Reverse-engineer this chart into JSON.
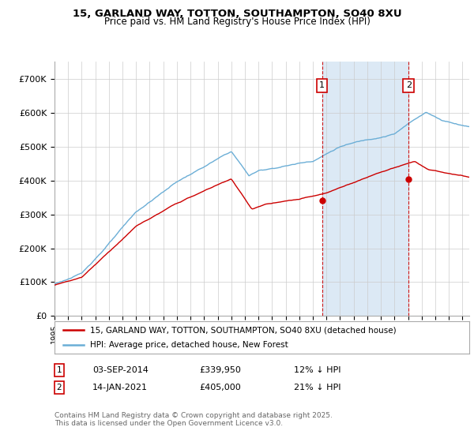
{
  "title1": "15, GARLAND WAY, TOTTON, SOUTHAMPTON, SO40 8XU",
  "title2": "Price paid vs. HM Land Registry's House Price Index (HPI)",
  "ylim": [
    0,
    750000
  ],
  "yticks": [
    0,
    100000,
    200000,
    300000,
    400000,
    500000,
    600000,
    700000
  ],
  "ytick_labels": [
    "£0",
    "£100K",
    "£200K",
    "£300K",
    "£400K",
    "£500K",
    "£600K",
    "£700K"
  ],
  "hpi_color": "#6baed6",
  "price_color": "#cc0000",
  "shade_color": "#dce9f5",
  "marker1_date": 2014.67,
  "marker1_price": 339950,
  "marker2_date": 2021.04,
  "marker2_price": 405000,
  "legend_line1": "15, GARLAND WAY, TOTTON, SOUTHAMPTON, SO40 8XU (detached house)",
  "legend_line2": "HPI: Average price, detached house, New Forest",
  "note1_date": "03-SEP-2014",
  "note1_price": "£339,950",
  "note1_hpi": "12% ↓ HPI",
  "note2_date": "14-JAN-2021",
  "note2_price": "£405,000",
  "note2_hpi": "21% ↓ HPI",
  "footer": "Contains HM Land Registry data © Crown copyright and database right 2025.\nThis data is licensed under the Open Government Licence v3.0.",
  "background_color": "#ffffff",
  "grid_color": "#cccccc",
  "xstart": 1995,
  "xend": 2025.5
}
